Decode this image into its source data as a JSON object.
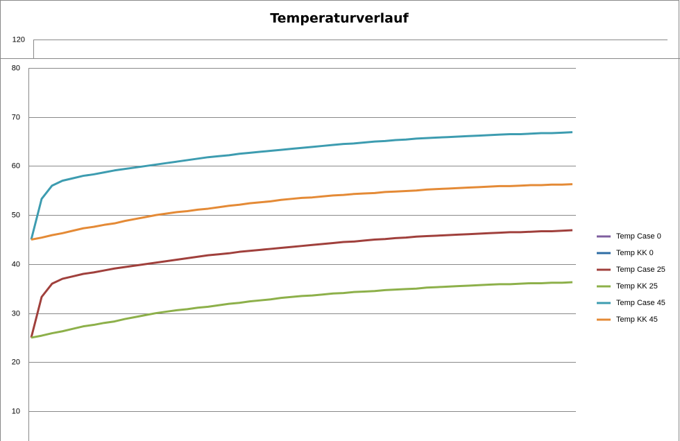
{
  "chart_data": [
    {
      "type": "line",
      "title": "Temperaturverlauf",
      "yticks": [
        120
      ]
    },
    {
      "type": "line",
      "categories": [
        null,
        null,
        null,
        null,
        null,
        null,
        null,
        null,
        null,
        null,
        null,
        null,
        null,
        null,
        null,
        null,
        null,
        null,
        null,
        null,
        null,
        null,
        null,
        null,
        null,
        null,
        null,
        null,
        null,
        null,
        null,
        null,
        null,
        null,
        null,
        null,
        null,
        null,
        null,
        null,
        null,
        null,
        null,
        null,
        null,
        null,
        null,
        null,
        null,
        null,
        null,
        null,
        null
      ],
      "ylim": [
        0,
        80
      ],
      "yticks": [
        10,
        20,
        30,
        40,
        50,
        60,
        70,
        80
      ],
      "grid": true,
      "legend": "right",
      "series": [
        {
          "name": "Temp Case 0",
          "color": "#7f5f9f",
          "values": [
            null,
            null,
            null,
            null,
            null,
            null,
            null,
            null,
            null,
            null,
            null,
            null,
            null,
            null,
            null,
            null,
            null,
            null,
            null,
            null,
            null,
            null,
            null,
            null,
            null,
            null,
            null,
            null,
            null,
            null,
            null,
            null,
            null,
            null,
            null,
            null,
            null,
            null,
            null,
            null,
            null,
            null,
            null,
            null,
            null,
            null,
            null,
            null,
            null,
            null,
            null,
            null,
            null
          ]
        },
        {
          "name": "Temp KK 0",
          "color": "#2e6ca4",
          "values": [
            null,
            null,
            null,
            null,
            null,
            null,
            null,
            null,
            null,
            null,
            null,
            null,
            null,
            null,
            null,
            null,
            null,
            null,
            null,
            null,
            null,
            null,
            null,
            null,
            null,
            null,
            null,
            null,
            null,
            null,
            null,
            null,
            null,
            null,
            null,
            null,
            null,
            null,
            null,
            null,
            null,
            null,
            null,
            null,
            null,
            null,
            null,
            null,
            null,
            null,
            null,
            null,
            null
          ]
        },
        {
          "name": "Temp Case 25",
          "color": "#a0403c",
          "values": [
            25,
            33.3,
            36,
            37,
            37.5,
            38,
            38.3,
            38.7,
            39.1,
            39.4,
            39.7,
            40,
            40.3,
            40.6,
            40.9,
            41.2,
            41.5,
            41.8,
            42.0,
            42.2,
            42.5,
            42.7,
            42.9,
            43.1,
            43.3,
            43.5,
            43.7,
            43.9,
            44.1,
            44.3,
            44.5,
            44.6,
            44.8,
            45.0,
            45.1,
            45.3,
            45.4,
            45.6,
            45.7,
            45.8,
            45.9,
            46.0,
            46.1,
            46.2,
            46.3,
            46.4,
            46.5,
            46.5,
            46.6,
            46.7,
            46.7,
            46.8,
            46.9
          ]
        },
        {
          "name": "Temp KK 25",
          "color": "#8db04a",
          "values": [
            25,
            25.4,
            25.9,
            26.3,
            26.8,
            27.3,
            27.6,
            28.0,
            28.3,
            28.8,
            29.2,
            29.6,
            30.0,
            30.3,
            30.6,
            30.8,
            31.1,
            31.3,
            31.6,
            31.9,
            32.1,
            32.4,
            32.6,
            32.8,
            33.1,
            33.3,
            33.5,
            33.6,
            33.8,
            34.0,
            34.1,
            34.3,
            34.4,
            34.5,
            34.7,
            34.8,
            34.9,
            35.0,
            35.2,
            35.3,
            35.4,
            35.5,
            35.6,
            35.7,
            35.8,
            35.9,
            35.9,
            36.0,
            36.1,
            36.1,
            36.2,
            36.2,
            36.3
          ]
        },
        {
          "name": "Temp Case 45",
          "color": "#3d9cb0",
          "values": [
            45,
            53.3,
            56,
            57,
            57.5,
            58,
            58.3,
            58.7,
            59.1,
            59.4,
            59.7,
            60,
            60.3,
            60.6,
            60.9,
            61.2,
            61.5,
            61.8,
            62.0,
            62.2,
            62.5,
            62.7,
            62.9,
            63.1,
            63.3,
            63.5,
            63.7,
            63.9,
            64.1,
            64.3,
            64.5,
            64.6,
            64.8,
            65.0,
            65.1,
            65.3,
            65.4,
            65.6,
            65.7,
            65.8,
            65.9,
            66.0,
            66.1,
            66.2,
            66.3,
            66.4,
            66.5,
            66.5,
            66.6,
            66.7,
            66.7,
            66.8,
            66.9
          ]
        },
        {
          "name": "Temp KK 45",
          "color": "#e48a36",
          "values": [
            45,
            45.4,
            45.9,
            46.3,
            46.8,
            47.3,
            47.6,
            48.0,
            48.3,
            48.8,
            49.2,
            49.6,
            50.0,
            50.3,
            50.6,
            50.8,
            51.1,
            51.3,
            51.6,
            51.9,
            52.1,
            52.4,
            52.6,
            52.8,
            53.1,
            53.3,
            53.5,
            53.6,
            53.8,
            54.0,
            54.1,
            54.3,
            54.4,
            54.5,
            54.7,
            54.8,
            54.9,
            55.0,
            55.2,
            55.3,
            55.4,
            55.5,
            55.6,
            55.7,
            55.8,
            55.9,
            55.9,
            56.0,
            56.1,
            56.1,
            56.2,
            56.2,
            56.3
          ]
        }
      ]
    }
  ]
}
